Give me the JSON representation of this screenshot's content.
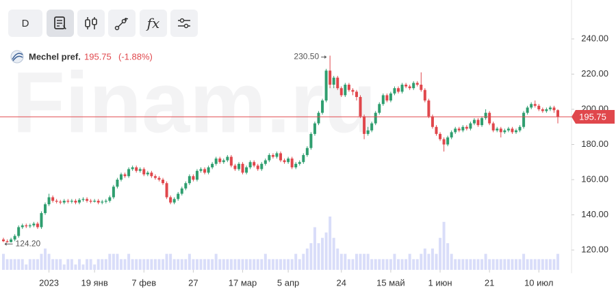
{
  "toolbar": {
    "interval": "D",
    "fx": "fx"
  },
  "chart_data": {
    "type": "candlestick",
    "title": "Mechel pref.",
    "last": 195.75,
    "change_label": "(-1.88%)",
    "watermark": "Finam.ru",
    "up_color": "#2f9e6f",
    "down_color": "#e0474c",
    "volume_color": "#d9ddf9",
    "xlim": [
      -0.9,
      149.6
    ],
    "xticks": [
      {
        "value": 12,
        "label": "2023"
      },
      {
        "value": 24,
        "label": "19 янв"
      },
      {
        "value": 37,
        "label": "7 фев"
      },
      {
        "value": 50,
        "label": "27"
      },
      {
        "value": 63,
        "label": "17 мар"
      },
      {
        "value": 75,
        "label": "5 апр"
      },
      {
        "value": 89,
        "label": "24"
      },
      {
        "value": 102,
        "label": "15 май"
      },
      {
        "value": 115,
        "label": "1 июн"
      },
      {
        "value": 128,
        "label": "21"
      },
      {
        "value": 141,
        "label": "10 июл"
      }
    ],
    "ylim": [
      108.74,
      262.14
    ],
    "yticks": [
      {
        "value": 120,
        "label": "120.00"
      },
      {
        "value": 140,
        "label": "140.00"
      },
      {
        "value": 160,
        "label": "160.00"
      },
      {
        "value": 180,
        "label": "180.00"
      },
      {
        "value": 200,
        "label": "200.00"
      },
      {
        "value": 220,
        "label": "220.00"
      },
      {
        "value": 240,
        "label": "240.00"
      }
    ],
    "annotations": [
      {
        "value": 230.5,
        "label": "230.50"
      },
      {
        "value": 124.2,
        "label": "124.20"
      }
    ],
    "candles": [
      [
        126,
        127,
        124.5,
        125
      ],
      [
        125,
        126,
        124.2,
        124.5
      ],
      [
        124.5,
        127,
        124.3,
        126
      ],
      [
        126,
        129,
        125,
        128
      ],
      [
        128,
        134,
        127,
        133
      ],
      [
        133,
        135,
        132,
        134
      ],
      [
        134,
        135,
        132.5,
        133.5
      ],
      [
        133.5,
        135,
        132.5,
        134
      ],
      [
        134,
        136,
        133,
        135
      ],
      [
        135,
        136,
        132,
        133
      ],
      [
        133,
        142,
        132,
        141
      ],
      [
        141,
        147,
        140,
        146
      ],
      [
        146,
        152,
        145,
        150
      ],
      [
        150,
        151,
        147,
        148
      ],
      [
        148,
        149,
        146.5,
        147.5
      ],
      [
        147.5,
        148.5,
        146,
        147
      ],
      [
        147,
        149,
        146,
        148
      ],
      [
        148,
        149,
        146.5,
        147.5
      ],
      [
        147.5,
        149,
        146.5,
        148
      ],
      [
        148,
        149,
        146,
        147
      ],
      [
        147,
        149.5,
        146,
        148.5
      ],
      [
        148.5,
        150,
        147.5,
        149
      ],
      [
        149,
        150,
        147,
        148
      ],
      [
        148,
        149,
        146.5,
        147.5
      ],
      [
        147.5,
        149,
        147,
        148
      ],
      [
        148,
        149,
        146,
        147
      ],
      [
        147,
        148.5,
        146,
        147.5
      ],
      [
        147.5,
        149,
        146.5,
        148
      ],
      [
        148,
        151,
        147,
        150
      ],
      [
        150,
        157,
        149,
        156
      ],
      [
        156,
        161,
        155,
        160
      ],
      [
        160,
        164,
        159,
        163
      ],
      [
        163,
        164,
        161,
        162
      ],
      [
        162,
        167,
        161,
        166
      ],
      [
        166,
        168,
        165,
        167
      ],
      [
        167,
        168,
        164,
        165
      ],
      [
        165,
        167,
        164,
        166
      ],
      [
        166,
        167,
        162,
        163
      ],
      [
        163,
        165,
        162,
        164
      ],
      [
        164,
        165,
        161,
        162
      ],
      [
        162,
        163,
        160,
        161
      ],
      [
        161,
        162,
        159,
        160
      ],
      [
        160,
        161,
        157,
        158
      ],
      [
        158,
        159,
        149,
        150
      ],
      [
        150,
        151,
        146,
        147
      ],
      [
        147,
        150,
        146,
        149
      ],
      [
        149,
        153,
        148,
        152
      ],
      [
        152,
        156,
        151,
        155
      ],
      [
        155,
        159,
        154,
        158
      ],
      [
        158,
        163,
        157,
        162
      ],
      [
        162,
        163,
        159,
        160
      ],
      [
        160,
        166,
        159,
        165
      ],
      [
        165,
        167,
        164,
        166
      ],
      [
        166,
        167,
        163,
        164
      ],
      [
        164,
        168,
        163,
        167
      ],
      [
        167,
        170,
        166,
        169
      ],
      [
        169,
        173,
        168,
        172
      ],
      [
        172,
        173,
        169,
        170
      ],
      [
        170,
        172,
        169,
        171
      ],
      [
        171,
        174,
        170,
        173
      ],
      [
        173,
        174,
        167,
        168
      ],
      [
        168,
        169,
        165,
        166
      ],
      [
        166,
        170,
        165,
        169
      ],
      [
        169,
        170,
        163,
        164
      ],
      [
        164,
        168,
        163,
        167
      ],
      [
        167,
        171,
        166,
        170
      ],
      [
        170,
        171,
        167,
        168
      ],
      [
        168,
        169,
        165,
        166
      ],
      [
        166,
        170,
        165,
        169
      ],
      [
        169,
        172,
        168,
        171
      ],
      [
        171,
        175,
        170,
        174
      ],
      [
        174,
        175,
        172,
        173
      ],
      [
        173,
        176,
        172,
        175
      ],
      [
        175,
        176,
        170,
        171
      ],
      [
        171,
        172,
        169,
        170
      ],
      [
        170,
        173,
        169,
        172
      ],
      [
        172,
        173,
        166,
        167
      ],
      [
        167,
        170,
        166,
        169
      ],
      [
        169,
        171,
        168,
        170
      ],
      [
        170,
        175,
        169,
        174
      ],
      [
        174,
        179,
        173,
        178
      ],
      [
        178,
        187,
        177,
        186
      ],
      [
        186,
        193,
        185,
        192
      ],
      [
        192,
        199,
        191,
        198
      ],
      [
        198,
        206,
        197,
        205
      ],
      [
        205,
        223,
        204,
        222
      ],
      [
        222,
        230.5,
        212,
        214
      ],
      [
        214,
        219,
        212,
        218
      ],
      [
        218,
        219,
        211,
        212
      ],
      [
        212,
        213,
        207,
        208
      ],
      [
        208,
        215,
        207,
        214
      ],
      [
        214,
        215,
        210,
        211
      ],
      [
        211,
        212,
        208,
        210
      ],
      [
        210,
        211,
        205,
        207
      ],
      [
        207,
        208,
        195,
        196
      ],
      [
        196,
        197,
        183,
        186
      ],
      [
        186,
        190,
        185,
        188
      ],
      [
        188,
        193,
        187,
        192
      ],
      [
        192,
        199,
        191,
        198
      ],
      [
        198,
        204,
        197,
        203
      ],
      [
        203,
        209,
        202,
        208
      ],
      [
        208,
        209,
        204,
        205
      ],
      [
        205,
        210,
        204,
        209
      ],
      [
        209,
        213,
        208,
        212
      ],
      [
        212,
        213,
        209,
        210
      ],
      [
        210,
        215,
        209,
        214
      ],
      [
        214,
        215,
        212,
        213
      ],
      [
        213,
        214,
        211,
        212
      ],
      [
        212,
        216,
        211,
        215
      ],
      [
        215,
        216,
        213,
        214
      ],
      [
        214,
        221,
        210,
        211
      ],
      [
        211,
        212,
        204,
        205
      ],
      [
        205,
        206,
        195,
        196
      ],
      [
        196,
        197,
        189,
        190
      ],
      [
        190,
        191,
        185,
        186
      ],
      [
        186,
        187,
        182,
        183
      ],
      [
        183,
        184,
        176,
        180
      ],
      [
        180,
        185,
        179,
        184
      ],
      [
        184,
        188,
        183,
        187
      ],
      [
        187,
        190,
        186,
        189
      ],
      [
        189,
        190,
        187,
        188
      ],
      [
        188,
        191,
        187,
        190
      ],
      [
        190,
        191,
        188,
        189
      ],
      [
        189,
        193,
        188,
        192
      ],
      [
        192,
        195,
        191,
        194
      ],
      [
        194,
        195,
        190,
        191
      ],
      [
        191,
        196,
        190,
        195
      ],
      [
        195,
        200,
        194,
        198
      ],
      [
        198,
        199,
        191,
        192
      ],
      [
        192,
        193,
        187,
        188
      ],
      [
        188,
        190,
        187,
        189
      ],
      [
        189,
        190,
        184,
        187
      ],
      [
        187,
        189,
        186,
        188
      ],
      [
        188,
        190,
        187,
        189
      ],
      [
        189,
        190,
        186,
        187
      ],
      [
        187,
        189,
        186,
        188
      ],
      [
        188,
        191,
        187,
        190
      ],
      [
        190,
        199,
        189,
        198
      ],
      [
        198,
        202,
        197,
        201
      ],
      [
        201,
        204,
        200,
        203
      ],
      [
        203,
        205,
        201,
        202
      ],
      [
        202,
        203,
        199,
        200
      ],
      [
        200,
        201,
        198,
        199
      ],
      [
        199,
        201,
        198,
        200
      ],
      [
        200,
        202,
        199,
        201
      ],
      [
        201,
        202,
        198,
        199.5
      ],
      [
        199.5,
        200,
        192,
        195.75
      ]
    ],
    "volumes": [
      3,
      2,
      2,
      2,
      2,
      2,
      1,
      2,
      2,
      2,
      3,
      4,
      3,
      2,
      2,
      2,
      1,
      2,
      2,
      1,
      2,
      1,
      2,
      2,
      1,
      2,
      2,
      2,
      3,
      3,
      3,
      2,
      2,
      3,
      2,
      2,
      2,
      2,
      2,
      2,
      2,
      2,
      2,
      3,
      3,
      2,
      2,
      2,
      2,
      3,
      2,
      2,
      2,
      2,
      2,
      2,
      3,
      2,
      2,
      2,
      2,
      2,
      2,
      2,
      2,
      2,
      2,
      2,
      2,
      3,
      2,
      2,
      2,
      2,
      2,
      2,
      2,
      3,
      2,
      3,
      4,
      5,
      8,
      5,
      6,
      7,
      10,
      6,
      4,
      3,
      3,
      2,
      2,
      3,
      3,
      3,
      3,
      2,
      2,
      2,
      2,
      2,
      2,
      3,
      2,
      2,
      2,
      3,
      2,
      2,
      3,
      4,
      3,
      4,
      3,
      6,
      9,
      5,
      3,
      2,
      2,
      2,
      2,
      2,
      2,
      2,
      2,
      3,
      2,
      2,
      2,
      2,
      2,
      2,
      2,
      2,
      2,
      3,
      2,
      2,
      2,
      2,
      2,
      2,
      2,
      2,
      3
    ]
  }
}
